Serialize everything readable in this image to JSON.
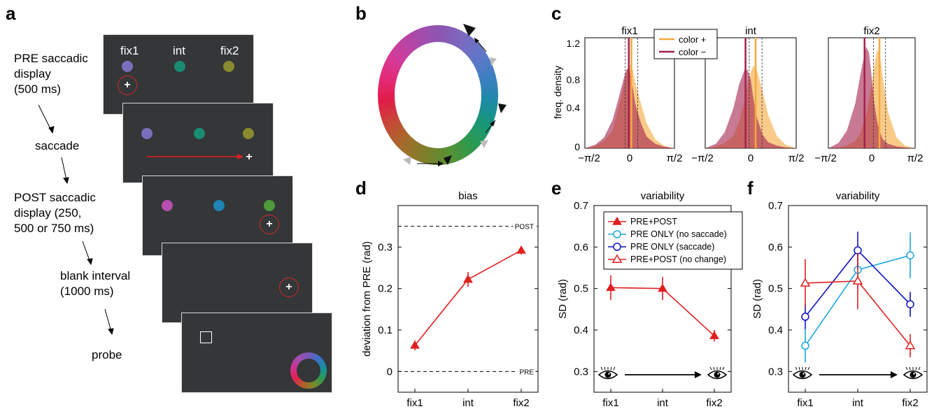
{
  "panels": {
    "a": "a",
    "b": "b",
    "c": "c",
    "d": "d",
    "e": "e",
    "f": "f"
  },
  "panel_a": {
    "steps": [
      "PRE saccadic\ndisplay\n(500 ms)",
      "saccade",
      "POST saccadic\ndisplay (250,\n500 or 750 ms)",
      "blank interval\n(1000 ms)",
      "probe"
    ],
    "screen_labels": [
      "fix1",
      "int",
      "fix2"
    ],
    "colors": {
      "pre_dots": [
        "#7a6fbf",
        "#1a8c72",
        "#8a8a2e"
      ],
      "post_dots": [
        "#b64fb0",
        "#1e86b5",
        "#4f9a3a"
      ],
      "screen_bg": "#343638",
      "saccade_arrow": "#e02020"
    }
  },
  "panel_c": {
    "legend": [
      "color +",
      "color −"
    ],
    "ylabel": "freq. density",
    "yticks": [
      "0",
      "0.4",
      "0.8",
      "1.2"
    ],
    "xticks": [
      "−π/2",
      "0",
      "π/2"
    ],
    "colors": {
      "plus": "#f5a93b",
      "minus": "#a3204d"
    }
  },
  "chart_data": [
    {
      "type": "area",
      "title": "fix1",
      "x": [
        -1.57,
        -1.2,
        -0.9,
        -0.6,
        -0.4,
        -0.2,
        -0.1,
        0,
        0.1,
        0.2,
        0.4,
        0.6,
        0.9,
        1.2,
        1.57
      ],
      "ylim": [
        0,
        1.25
      ],
      "series": [
        {
          "name": "color +",
          "values": [
            0,
            0.03,
            0.08,
            0.2,
            0.45,
            0.72,
            0.88,
            0.95,
            0.9,
            0.74,
            0.5,
            0.28,
            0.1,
            0.03,
            0
          ]
        },
        {
          "name": "color −",
          "values": [
            0,
            0.04,
            0.12,
            0.32,
            0.55,
            0.8,
            0.9,
            0.88,
            0.7,
            0.5,
            0.28,
            0.13,
            0.05,
            0.02,
            0
          ]
        }
      ],
      "vlines": {
        "plus_mean": 0.06,
        "minus_mean": -0.03
      }
    },
    {
      "type": "area",
      "title": "int",
      "x": [
        -1.57,
        -1.2,
        -0.9,
        -0.6,
        -0.4,
        -0.2,
        -0.1,
        0,
        0.1,
        0.2,
        0.4,
        0.6,
        0.9,
        1.2,
        1.57
      ],
      "ylim": [
        0,
        1.25
      ],
      "series": [
        {
          "name": "color +",
          "values": [
            0,
            0.02,
            0.06,
            0.14,
            0.3,
            0.55,
            0.72,
            0.86,
            0.94,
            0.9,
            0.66,
            0.38,
            0.14,
            0.04,
            0
          ]
        },
        {
          "name": "color −",
          "values": [
            0,
            0.05,
            0.18,
            0.45,
            0.72,
            0.9,
            0.88,
            0.78,
            0.55,
            0.36,
            0.16,
            0.07,
            0.03,
            0.01,
            0
          ]
        }
      ],
      "vlines": {
        "plus_mean": 0.17,
        "minus_mean": -0.18
      }
    },
    {
      "type": "area",
      "title": "fix2",
      "x": [
        -1.57,
        -1.2,
        -0.9,
        -0.6,
        -0.4,
        -0.2,
        -0.1,
        0,
        0.1,
        0.2,
        0.3,
        0.4,
        0.6,
        0.9,
        1.2,
        1.57
      ],
      "ylim": [
        0,
        1.25
      ],
      "series": [
        {
          "name": "color +",
          "values": [
            0,
            0.01,
            0.03,
            0.08,
            0.18,
            0.38,
            0.55,
            0.72,
            0.95,
            1.12,
            1.05,
            0.8,
            0.4,
            0.12,
            0.03,
            0
          ]
        },
        {
          "name": "color −",
          "values": [
            0,
            0.06,
            0.2,
            0.5,
            0.85,
            1.15,
            1.08,
            0.8,
            0.5,
            0.3,
            0.18,
            0.1,
            0.05,
            0.02,
            0.01,
            0
          ]
        }
      ],
      "vlines": {
        "plus_mean": 0.28,
        "minus_mean": -0.26
      }
    },
    {
      "type": "line",
      "title": "bias",
      "ylabel": "deviation from PRE (rad)",
      "categories": [
        "fix1",
        "int",
        "fix2"
      ],
      "ylim": [
        -0.05,
        0.4
      ],
      "yticks": [
        "0",
        "0.1",
        "0.2",
        "0.3"
      ],
      "ref_lines": [
        {
          "y": 0.35,
          "label": "POST"
        },
        {
          "y": 0,
          "label": "PRE"
        }
      ],
      "series": [
        {
          "values": [
            0.063,
            0.222,
            0.292
          ],
          "errors": [
            0.012,
            0.018,
            0.01
          ],
          "color": "#e02020",
          "marker": "filled-triangle"
        }
      ]
    },
    {
      "type": "line",
      "title": "variability",
      "ylabel": "SD (rad)",
      "categories": [
        "fix1",
        "int",
        "fix2"
      ],
      "ylim": [
        0.25,
        0.7
      ],
      "yticks": [
        "0.3",
        "0.4",
        "0.5",
        "0.6",
        "0.7"
      ],
      "legend": [
        {
          "name": "PRE+POST",
          "color": "#e02020",
          "marker": "filled-triangle"
        },
        {
          "name": "PRE ONLY (no saccade)",
          "color": "#1aa6e0",
          "marker": "open-circle"
        },
        {
          "name": "PRE ONLY (saccade)",
          "color": "#1010c0",
          "marker": "open-circle"
        },
        {
          "name": "PRE+POST (no change)",
          "color": "#e02020",
          "marker": "open-triangle"
        }
      ],
      "series": [
        {
          "name": "PRE+POST",
          "values": [
            0.502,
            0.5,
            0.386
          ],
          "errors": [
            0.03,
            0.028,
            0.014
          ],
          "color": "#e02020",
          "marker": "filled-triangle"
        }
      ]
    },
    {
      "type": "line",
      "title": "variability",
      "ylabel": "SD (rad)",
      "categories": [
        "fix1",
        "int",
        "fix2"
      ],
      "ylim": [
        0.25,
        0.7
      ],
      "yticks": [
        "0.3",
        "0.4",
        "0.5",
        "0.6",
        "0.7"
      ],
      "series": [
        {
          "name": "PRE ONLY (no saccade)",
          "values": [
            0.362,
            0.545,
            0.58
          ],
          "errors": [
            0.04,
            0.045,
            0.055
          ],
          "color": "#1aa6e0",
          "marker": "open-circle"
        },
        {
          "name": "PRE ONLY (saccade)",
          "values": [
            0.432,
            0.592,
            0.462
          ],
          "errors": [
            0.03,
            0.045,
            0.03
          ],
          "color": "#1010c0",
          "marker": "open-circle"
        },
        {
          "name": "PRE+POST (no change)",
          "values": [
            0.513,
            0.518,
            0.362
          ],
          "errors": [
            0.058,
            0.068,
            0.028
          ],
          "color": "#e02020",
          "marker": "open-triangle"
        }
      ]
    }
  ]
}
